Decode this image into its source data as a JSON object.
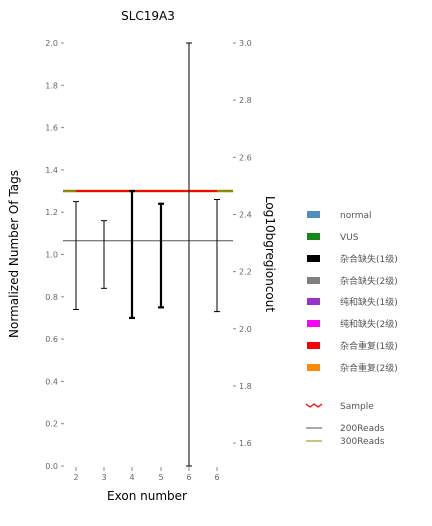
{
  "chart_data": {
    "type": "line",
    "title": "SLC19A3",
    "xlabel": "Exon number",
    "ylabel": "Normalized Number Of Tags",
    "y2label": "Log10bgregioncout",
    "x_tick_labels": [
      "2",
      "3",
      "4",
      "5",
      "6",
      "6"
    ],
    "ylim": [
      0.0,
      2.0
    ],
    "y_ticks": [
      "0.0",
      "0.2",
      "0.4",
      "0.6",
      "0.8",
      "1.0",
      "1.2",
      "1.4",
      "1.6",
      "1.8",
      "2.0"
    ],
    "y2lim": [
      1.52,
      3.0
    ],
    "y2_ticks": [
      "1.6",
      "1.8",
      "2.0",
      "2.2",
      "2.4",
      "2.6",
      "2.8",
      "3.0"
    ],
    "error_bars": [
      {
        "x": "2",
        "low": 0.74,
        "high": 1.25,
        "bold": false
      },
      {
        "x": "3",
        "low": 0.84,
        "high": 1.16,
        "bold": false
      },
      {
        "x": "4",
        "low": 0.7,
        "high": 1.3,
        "bold": true
      },
      {
        "x": "5",
        "low": 0.75,
        "high": 1.24,
        "bold": true
      },
      {
        "x": "6",
        "low": 0.0,
        "high": 2.0,
        "bold": false
      },
      {
        "x": "6",
        "low": 0.73,
        "high": 1.26,
        "bold": false
      }
    ],
    "reference_lines": [
      {
        "name": "200Reads",
        "y": 1.065,
        "color": "#555555"
      },
      {
        "name": "300Reads",
        "y": 1.3,
        "color": "#8b8b00"
      }
    ],
    "sample_line": {
      "name": "Sample",
      "y": 1.3,
      "color": "#ff0000"
    },
    "legend": [
      {
        "label": "normal",
        "color": "#4f8fc0",
        "kind": "box"
      },
      {
        "label": "VUS",
        "color": "#138a13",
        "kind": "box"
      },
      {
        "label": "杂合缺失(1级)",
        "color": "#000000",
        "kind": "box"
      },
      {
        "label": "杂合缺失(2级)",
        "color": "#808080",
        "kind": "box"
      },
      {
        "label": "纯和缺失(1级)",
        "color": "#9932cc",
        "kind": "box"
      },
      {
        "label": "纯和缺失(2级)",
        "color": "#ff00ff",
        "kind": "box"
      },
      {
        "label": "杂合重复(1级)",
        "color": "#ff0000",
        "kind": "box"
      },
      {
        "label": "杂合重复(2级)",
        "color": "#ff8c00",
        "kind": "box"
      },
      {
        "label": "Sample",
        "color": "#ff0000",
        "kind": "zigzag"
      },
      {
        "label": "200Reads",
        "color": "#555555",
        "kind": "line"
      },
      {
        "label": "300Reads",
        "color": "#8b8b00",
        "kind": "line"
      }
    ]
  }
}
